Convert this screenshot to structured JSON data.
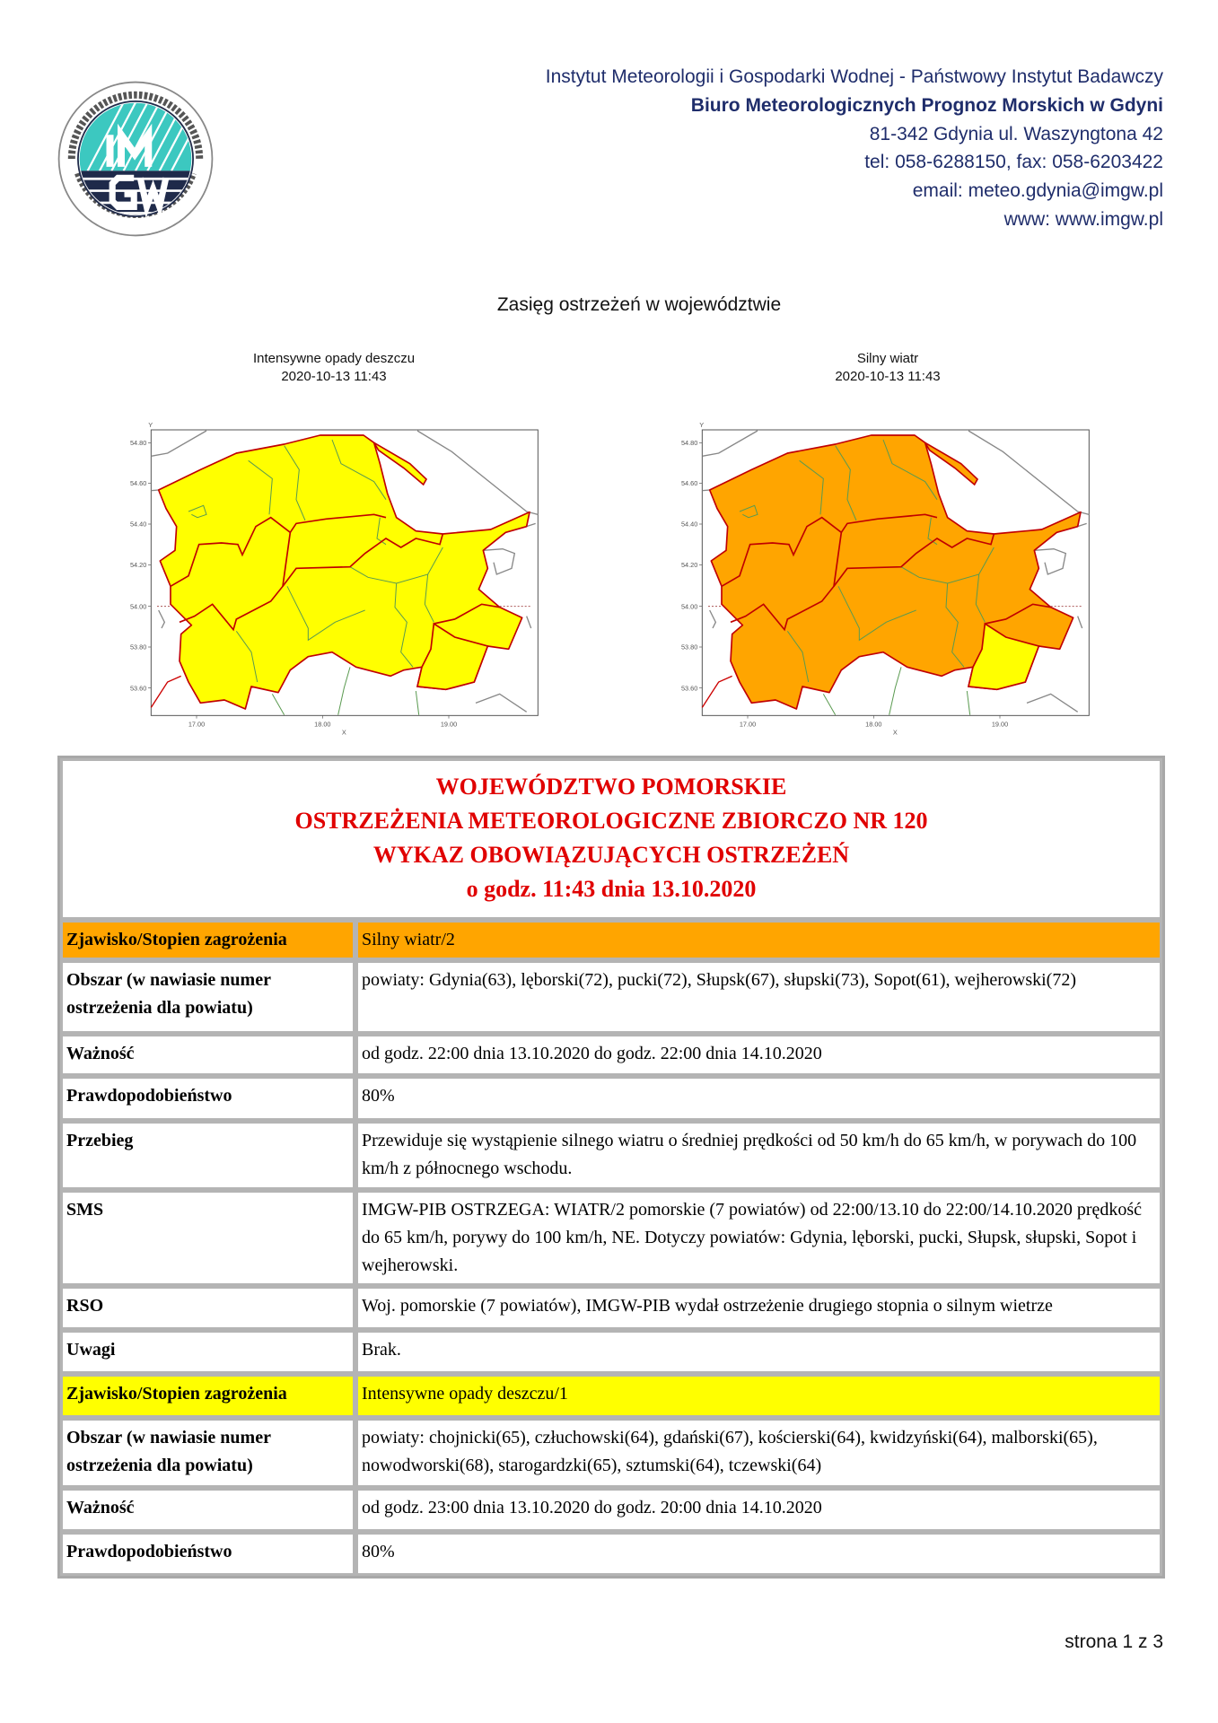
{
  "logo": {
    "letters_top": "IM",
    "letters_bottom": "GW",
    "ring_top": "INSTYTUT METEOROLOGII I GOSPODARKI WODNEJ",
    "ring_bottom": "PAŃSTWOWY INSTYTUT BADAWCZY",
    "colors": {
      "teal": "#3cc8c0",
      "navy": "#1f2a4a"
    }
  },
  "header": {
    "institute": "Instytut Meteorologii i Gospodarki Wodnej - Państwowy Instytut Badawczy",
    "office": "Biuro Meteorologicznych Prognoz Morskich w Gdyni",
    "address": "81-342 Gdynia ul. Waszyngtona 42",
    "phone": "tel: 058-6288150, fax: 058-6203422",
    "email": "email: meteo.gdynia@imgw.pl",
    "www": "www: www.imgw.pl"
  },
  "maps_title": "Zasięg ostrzeżeń w województwie",
  "maps": [
    {
      "caption": "Intensywne opady deszczu",
      "timestamp": "2020-10-13 11:43",
      "fill": "#ffff00",
      "se_fill": "#ffff00"
    },
    {
      "caption": "Silny wiatr",
      "timestamp": "2020-10-13 11:43",
      "fill": "#ffa500",
      "se_fill": "#ffff00"
    }
  ],
  "map_axes": {
    "y_label": "Y",
    "x_label": "X",
    "y_ticks": [
      "54.80",
      "54.60",
      "54.40",
      "54.20",
      "54.00",
      "53.80",
      "53.60"
    ],
    "x_ticks": [
      "17.00",
      "18.00",
      "19.00"
    ]
  },
  "table": {
    "title_lines": [
      "WOJEWÓDZTWO POMORSKIE",
      "OSTRZEŻENIA METEOROLOGICZNE ZBIORCZO NR 120",
      "WYKAZ OBOWIĄZUJĄCYCH OSTRZEŻEŃ",
      "o godz. 11:43 dnia 13.10.2020"
    ],
    "colors": {
      "level2": "#ffa500",
      "level1": "#ffff00",
      "title": "#e00000"
    },
    "rows": [
      {
        "key": "Zjawisko/Stopien zagrożenia",
        "value": "Silny wiatr/2"
      },
      {
        "key": "Obszar (w nawiasie numer ostrzeżenia dla powiatu)",
        "value": "powiaty: Gdynia(63), lęborski(72), pucki(72), Słupsk(67), słupski(73), Sopot(61), wejherowski(72)"
      },
      {
        "key": "Ważność",
        "value": "od godz. 22:00 dnia 13.10.2020 do godz. 22:00 dnia 14.10.2020"
      },
      {
        "key": "Prawdopodobieństwo",
        "value": "80%"
      },
      {
        "key": "Przebieg",
        "value": "Przewiduje się wystąpienie silnego wiatru o średniej prędkości od 50 km/h do 65 km/h, w porywach do 100 km/h z północnego wschodu."
      },
      {
        "key": "SMS",
        "value": "IMGW-PIB OSTRZEGA: WIATR/2 pomorskie (7 powiatów) od 22:00/13.10 do 22:00/14.10.2020 prędkość do 65 km/h, porywy do 100 km/h, NE. Dotyczy powiatów: Gdynia, lęborski, pucki, Słupsk, słupski, Sopot i wejherowski."
      },
      {
        "key": "RSO",
        "value": "Woj. pomorskie (7 powiatów), IMGW-PIB wydał ostrzeżenie drugiego stopnia o silnym wietrze"
      },
      {
        "key": "Uwagi",
        "value": "Brak."
      },
      {
        "key": "Zjawisko/Stopien zagrożenia",
        "value": "Intensywne opady deszczu/1"
      },
      {
        "key": "Obszar (w nawiasie numer ostrzeżenia dla powiatu)",
        "value": "powiaty: chojnicki(65), człuchowski(64), gdański(67), kościerski(64), kwidzyński(64), malborski(65), nowodworski(68), starogardzki(65), sztumski(64), tczewski(64)"
      },
      {
        "key": "Ważność",
        "value": "od godz. 23:00 dnia 13.10.2020 do godz. 20:00 dnia 14.10.2020"
      },
      {
        "key": "Prawdopodobieństwo",
        "value": "80%"
      }
    ]
  },
  "footer": {
    "page": "strona 1 z 3"
  }
}
